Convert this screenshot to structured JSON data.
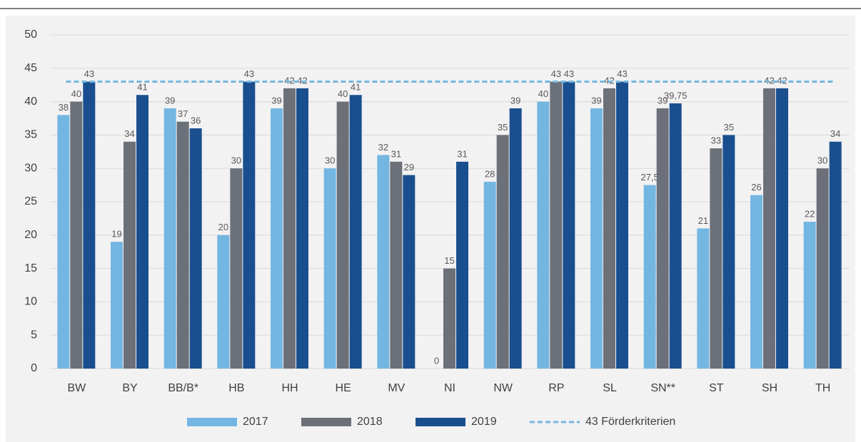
{
  "chart_data": {
    "type": "bar",
    "categories": [
      "BW",
      "BY",
      "BB/B*",
      "HB",
      "HH",
      "HE",
      "MV",
      "NI",
      "NW",
      "RP",
      "SL",
      "SN**",
      "ST",
      "SH",
      "TH"
    ],
    "series": [
      {
        "name": "2017",
        "color": "#74b6e2",
        "values": [
          38,
          19,
          39,
          20,
          39,
          30,
          32,
          0,
          28,
          40,
          39,
          27.5,
          21,
          26,
          22
        ],
        "value_labels": [
          "38",
          "19",
          "39",
          "20",
          "39",
          "30",
          "32",
          "0",
          "28",
          "40",
          "39",
          "27,5",
          "21",
          "26",
          "22"
        ]
      },
      {
        "name": "2018",
        "color": "#6b7079",
        "values": [
          40,
          34,
          37,
          30,
          42,
          40,
          31,
          15,
          35,
          43,
          42,
          39,
          33,
          42,
          30
        ]
      },
      {
        "name": "2019",
        "color": "#1a4f8f",
        "values": [
          43,
          41,
          36,
          43,
          42,
          41,
          29,
          31,
          39,
          43,
          43,
          39.75,
          35,
          42,
          34
        ],
        "value_labels": [
          "43",
          "41",
          "36",
          "43",
          "42",
          "41",
          "29",
          "31",
          "39",
          "43",
          "43",
          "39,75",
          "35",
          "42",
          "34"
        ]
      }
    ],
    "reference_line": {
      "name": "43 Förderkriterien",
      "value": 43,
      "color": "#74b6e2",
      "style": "dashed"
    },
    "ylim": [
      0,
      50
    ],
    "yticks": [
      0,
      5,
      10,
      15,
      20,
      25,
      30,
      35,
      40,
      45,
      50
    ],
    "grid": true,
    "legend": "bottom"
  }
}
